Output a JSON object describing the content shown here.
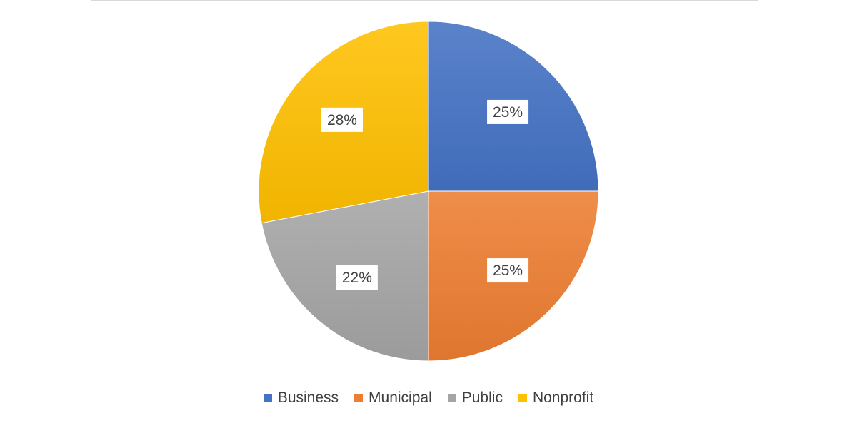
{
  "chart_data": {
    "type": "pie",
    "categories": [
      "Business",
      "Municipal",
      "Public",
      "Nonprofit"
    ],
    "values": [
      25,
      25,
      22,
      28
    ],
    "data_labels": [
      "25%",
      "25%",
      "22%",
      "28%"
    ],
    "colors": [
      "#4472c4",
      "#ed7d31",
      "#a5a5a5",
      "#ffc000"
    ],
    "start_angle_deg": 0,
    "direction": "clockwise",
    "legend_position": "bottom",
    "title": ""
  },
  "legend": {
    "items": [
      {
        "label": "Business",
        "color": "#4472c4"
      },
      {
        "label": "Municipal",
        "color": "#ed7d31"
      },
      {
        "label": "Public",
        "color": "#a5a5a5"
      },
      {
        "label": "Nonprofit",
        "color": "#ffc000"
      }
    ]
  }
}
